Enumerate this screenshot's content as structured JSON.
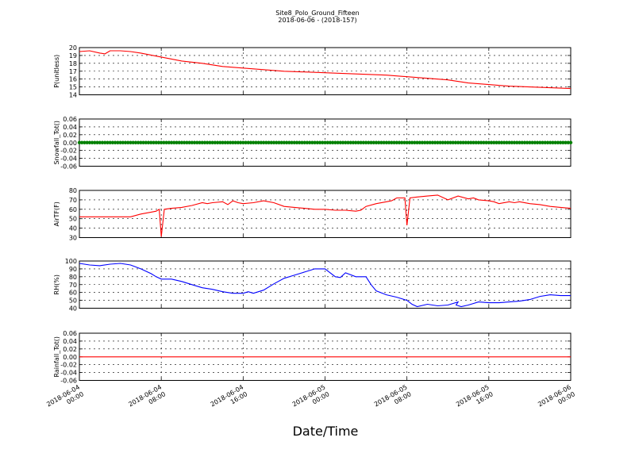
{
  "figure": {
    "title": "Site8_Polo_Ground_Fifteen",
    "subtitle": "2018-06-06 - (2018-157)",
    "xlabel": "Date/Time",
    "x_tick_labels": [
      [
        "2018-06-04",
        "00:00"
      ],
      [
        "2018-06-04",
        "08:00"
      ],
      [
        "2018-06-04",
        "16:00"
      ],
      [
        "2018-06-05",
        "00:00"
      ],
      [
        "2018-06-05",
        "08:00"
      ],
      [
        "2018-06-05",
        "16:00"
      ],
      [
        "2018-06-06",
        "00:00"
      ]
    ]
  },
  "chart_data": [
    {
      "type": "line",
      "ylabel": "P(unitless)",
      "ylim": [
        14,
        20
      ],
      "yticks": [
        14,
        15,
        16,
        17,
        18,
        19,
        20
      ],
      "tick_decimals": 0,
      "color": "#ff0000",
      "grid": true,
      "x_hours": [
        0,
        1,
        2,
        2.5,
        3,
        4,
        5,
        6,
        8,
        10,
        12,
        14,
        16,
        18,
        20,
        22,
        24,
        26,
        28,
        30,
        32,
        34,
        36,
        38,
        40,
        42,
        44,
        46,
        48
      ],
      "values": [
        19.5,
        19.6,
        19.3,
        19.2,
        19.6,
        19.6,
        19.5,
        19.3,
        18.8,
        18.3,
        18.0,
        17.6,
        17.4,
        17.2,
        17.0,
        16.9,
        16.8,
        16.7,
        16.6,
        16.5,
        16.3,
        16.1,
        15.9,
        15.5,
        15.3,
        15.1,
        15.0,
        14.9,
        14.8
      ]
    },
    {
      "type": "scatter",
      "ylabel": "Snowfall_Tot()",
      "ylim": [
        -0.06,
        0.06
      ],
      "yticks": [
        -0.06,
        -0.04,
        -0.02,
        0.0,
        0.02,
        0.04,
        0.06
      ],
      "tick_decimals": 2,
      "color": "#008000",
      "grid": true,
      "x_hours": [
        0,
        48
      ],
      "values": [
        0.0,
        0.0
      ],
      "marker_every_hours": 0.25
    },
    {
      "type": "line",
      "ylabel": "AirTF(F)",
      "ylim": [
        30,
        80
      ],
      "yticks": [
        30,
        40,
        50,
        60,
        70,
        80
      ],
      "tick_decimals": 0,
      "color": "#ff0000",
      "grid": true,
      "x_hours": [
        0,
        2,
        4,
        4.5,
        5,
        6,
        7,
        7.5,
        7.8,
        8.0,
        8.3,
        9,
        10,
        11,
        12,
        12.5,
        13,
        14,
        14.5,
        15,
        15.5,
        16,
        17,
        18,
        19,
        20,
        21,
        22,
        23,
        24,
        25,
        26,
        27,
        27.5,
        28,
        29,
        30,
        30.5,
        31,
        31.5,
        31.8,
        32.0,
        32.3,
        33,
        34,
        35,
        36,
        37,
        38,
        38.5,
        39,
        40,
        40.5,
        41,
        42,
        42.5,
        43,
        44,
        45,
        46,
        47,
        48
      ],
      "values": [
        52,
        52,
        52,
        52,
        52,
        55,
        57,
        58,
        60,
        31,
        60,
        61,
        62,
        64,
        67,
        66,
        67,
        68,
        65,
        69,
        67,
        66,
        67,
        69,
        67,
        63,
        62,
        61,
        60,
        60,
        59,
        59,
        58,
        59,
        63,
        66,
        68,
        69,
        72,
        72,
        72,
        43,
        72,
        73,
        74,
        75,
        70,
        74,
        71,
        72,
        70,
        69,
        68,
        66,
        68,
        67,
        68,
        66,
        65,
        63,
        62,
        61
      ]
    },
    {
      "type": "line",
      "ylabel": "RH(%)",
      "ylim": [
        40,
        100
      ],
      "yticks": [
        40,
        50,
        60,
        70,
        80,
        90,
        100
      ],
      "tick_decimals": 0,
      "color": "#0000ff",
      "grid": true,
      "x_hours": [
        0,
        1,
        2,
        3,
        4,
        5,
        6,
        7,
        7.5,
        8,
        9,
        10,
        11,
        12,
        13,
        14,
        15,
        16,
        16.5,
        17,
        18,
        19,
        20,
        21,
        22,
        23,
        24,
        25,
        25.5,
        26,
        27,
        28,
        28.5,
        29,
        30,
        31,
        32,
        32.5,
        33,
        34,
        35,
        36,
        37,
        36.8,
        37.3,
        38,
        39,
        40,
        41,
        42,
        43,
        44,
        45,
        46,
        47,
        48
      ],
      "values": [
        97,
        95,
        94,
        96,
        97,
        95,
        90,
        84,
        80,
        77,
        77,
        74,
        70,
        66,
        64,
        61,
        59,
        59,
        61,
        59,
        63,
        71,
        78,
        82,
        86,
        90,
        90,
        80,
        79,
        85,
        80,
        80,
        70,
        62,
        57,
        54,
        50,
        45,
        42,
        45,
        43,
        44,
        48,
        44,
        42,
        44,
        48,
        47,
        47,
        48,
        49,
        51,
        55,
        57,
        56,
        56
      ]
    },
    {
      "type": "line",
      "ylabel": "Rainfall_Tot()",
      "ylim": [
        -0.06,
        0.06
      ],
      "yticks": [
        -0.06,
        -0.04,
        -0.02,
        0.0,
        0.02,
        0.04,
        0.06
      ],
      "tick_decimals": 2,
      "color": "#ff0000",
      "grid": true,
      "x_hours": [
        0,
        48
      ],
      "values": [
        0.0,
        0.0
      ]
    }
  ]
}
